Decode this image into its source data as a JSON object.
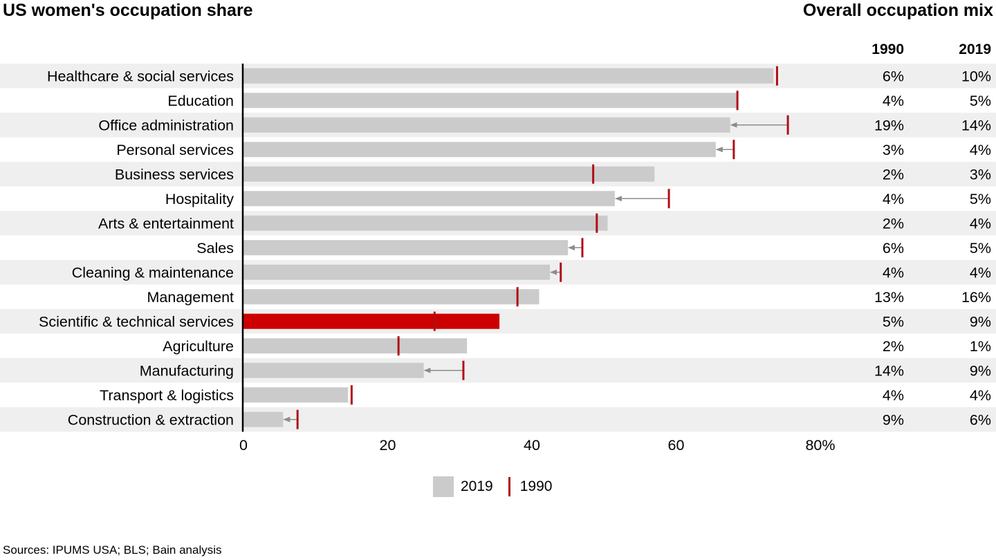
{
  "title": "US women's occupation share",
  "right_title": "Overall occupation mix",
  "column_headers": [
    "1990",
    "2019"
  ],
  "source": "Sources: IPUMS USA; BLS; Bain analysis",
  "legend": {
    "item_2019": "2019",
    "item_1990": "1990"
  },
  "colors": {
    "bar": "#cbcbcb",
    "highlight": "#cc0000",
    "tick": "#b00e15",
    "arrow": "#8c8c8c",
    "stripe": "#efefef"
  },
  "chart_data": {
    "type": "bar",
    "orientation": "horizontal",
    "xlim": [
      0,
      80
    ],
    "x_ticks": [
      "0",
      "20",
      "40",
      "60",
      "80%"
    ],
    "x_tick_values": [
      0,
      20,
      40,
      60,
      80
    ],
    "highlight_category": "Scientific & technical services",
    "categories": [
      "Healthcare & social services",
      "Education",
      "Office administration",
      "Personal services",
      "Business services",
      "Hospitality",
      "Arts & entertainment",
      "Sales",
      "Cleaning & maintenance",
      "Management",
      "Scientific & technical services",
      "Agriculture",
      "Manufacturing",
      "Transport & logistics",
      "Construction & extraction"
    ],
    "series": [
      {
        "name": "2019",
        "values": [
          73.5,
          68.5,
          67.5,
          65.5,
          57,
          51.5,
          50.5,
          45,
          42.5,
          41,
          35.5,
          31,
          25,
          14.5,
          5.5
        ]
      },
      {
        "name": "1990",
        "values": [
          74,
          68.5,
          75.5,
          68,
          48.5,
          59,
          49,
          47,
          44,
          38,
          26.5,
          21.5,
          30.5,
          15,
          7.5
        ]
      }
    ],
    "mix_1990": [
      "6%",
      "4%",
      "19%",
      "3%",
      "2%",
      "4%",
      "2%",
      "6%",
      "4%",
      "13%",
      "5%",
      "2%",
      "14%",
      "4%",
      "9%"
    ],
    "mix_2019": [
      "10%",
      "5%",
      "14%",
      "4%",
      "3%",
      "5%",
      "4%",
      "5%",
      "4%",
      "16%",
      "9%",
      "1%",
      "9%",
      "4%",
      "6%"
    ]
  }
}
